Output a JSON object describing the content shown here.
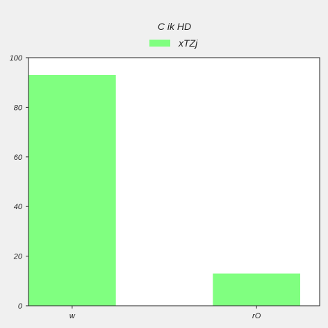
{
  "chart_data": {
    "type": "bar",
    "title": "C  ik HD",
    "xlabel": "",
    "ylabel": "",
    "categories": [
      "w",
      "rO"
    ],
    "series": [
      {
        "name": "xTZj",
        "values": [
          93,
          13
        ]
      }
    ],
    "ylim": [
      0,
      100
    ],
    "yticks": [
      0,
      20,
      40,
      60,
      80,
      100
    ],
    "grid": false,
    "legend_position": "top-center",
    "colors": {
      "bar": "#80ff80",
      "plot_background": "#ffffff",
      "figure_background": "#f0f0f0",
      "axis": "#222222"
    }
  }
}
